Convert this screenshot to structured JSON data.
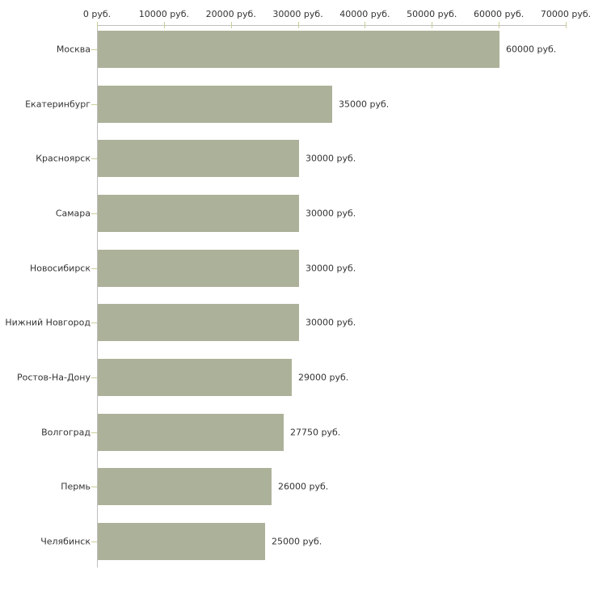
{
  "chart_data": {
    "type": "bar",
    "orientation": "horizontal",
    "title": "",
    "xlabel": "",
    "ylabel": "",
    "categories": [
      "Москва",
      "Екатеринбург",
      "Красноярск",
      "Самара",
      "Новосибирск",
      "Нижний Новгород",
      "Ростов-На-Дону",
      "Волгоград",
      "Пермь",
      "Челябинск"
    ],
    "values": [
      60000,
      35000,
      30000,
      30000,
      30000,
      30000,
      29000,
      27750,
      26000,
      25000
    ],
    "value_labels": [
      "60000 руб.",
      "35000 руб.",
      "30000 руб.",
      "30000 руб.",
      "30000 руб.",
      "30000 руб.",
      "29000 руб.",
      "27750 руб.",
      "26000 руб.",
      "25000 руб."
    ],
    "x_axis": {
      "position": "top",
      "min": 0,
      "max": 70000,
      "tick_values": [
        0,
        10000,
        20000,
        30000,
        40000,
        50000,
        60000,
        70000
      ],
      "tick_labels": [
        "0 руб.",
        "10000 руб.",
        "20000 руб.",
        "30000 руб.",
        "40000 руб.",
        "50000 руб.",
        "60000 руб.",
        "70000 руб."
      ]
    },
    "grid": false,
    "legend": false,
    "colors": {
      "bar": "#acb199",
      "axis_line": "#bfbfbf",
      "tick": "#cccc99",
      "text": "#333333",
      "background": "#ffffff"
    }
  }
}
